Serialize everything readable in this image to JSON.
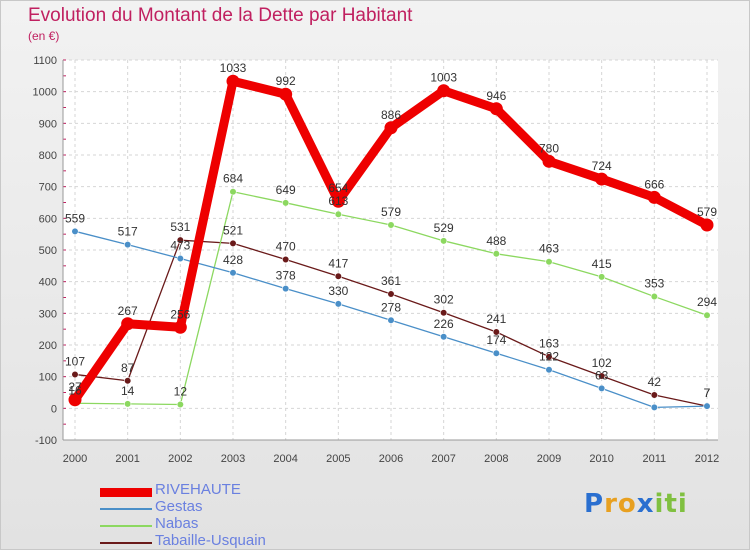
{
  "header": {
    "title": "Evolution du Montant de la Dette par Habitant",
    "subtitle": "(en €)"
  },
  "chart_data": {
    "type": "line",
    "x": [
      "2000",
      "2001",
      "2002",
      "2003",
      "2004",
      "2005",
      "2006",
      "2007",
      "2008",
      "2009",
      "2010",
      "2011",
      "2012"
    ],
    "ylim": [
      -100,
      1100
    ],
    "yticks": [
      -100,
      0,
      100,
      200,
      300,
      400,
      500,
      600,
      700,
      800,
      900,
      1000,
      1100
    ],
    "grid": true,
    "legend_position": "bottom-left",
    "series": [
      {
        "name": "RIVEHAUTE",
        "color": "#ee0000",
        "values": [
          27,
          267,
          256,
          1033,
          992,
          654,
          886,
          1003,
          946,
          780,
          724,
          666,
          579
        ],
        "labels": [
          "27",
          "267",
          "256",
          "1033",
          "992",
          "654",
          "886",
          "1003",
          "946",
          "780",
          "724",
          "666",
          "579"
        ]
      },
      {
        "name": "Gestas",
        "color": "#4a8fc8",
        "values": [
          559,
          517,
          473,
          428,
          378,
          330,
          278,
          226,
          174,
          122,
          63,
          3,
          7
        ],
        "labels": [
          "559",
          "517",
          "473",
          "428",
          "378",
          "330",
          "278",
          "226",
          "174",
          "122",
          "63",
          "",
          "7"
        ]
      },
      {
        "name": "Nabas",
        "color": "#8cd860",
        "values": [
          16,
          14,
          12,
          684,
          649,
          613,
          579,
          529,
          488,
          463,
          415,
          353,
          294
        ],
        "labels": [
          "16",
          "14",
          "12",
          "684",
          "649",
          "613",
          "579",
          "529",
          "488",
          "463",
          "415",
          "353",
          "294"
        ]
      },
      {
        "name": "Tabaille-Usquain",
        "color": "#6a1a1a",
        "values": [
          107,
          87,
          531,
          521,
          470,
          417,
          361,
          302,
          241,
          163,
          102,
          42,
          7
        ],
        "labels": [
          "107",
          "87",
          "531",
          "521",
          "470",
          "417",
          "361",
          "302",
          "241",
          "163",
          "102",
          "42",
          "7"
        ]
      }
    ]
  },
  "logo": {
    "letters": [
      "P",
      "r",
      "o",
      "x",
      "i",
      "t",
      "i"
    ],
    "colors": [
      "#2a6fd0",
      "#e8a020",
      "#e8a020",
      "#2a6fd0",
      "#80c040",
      "#80c040",
      "#80c040"
    ]
  }
}
